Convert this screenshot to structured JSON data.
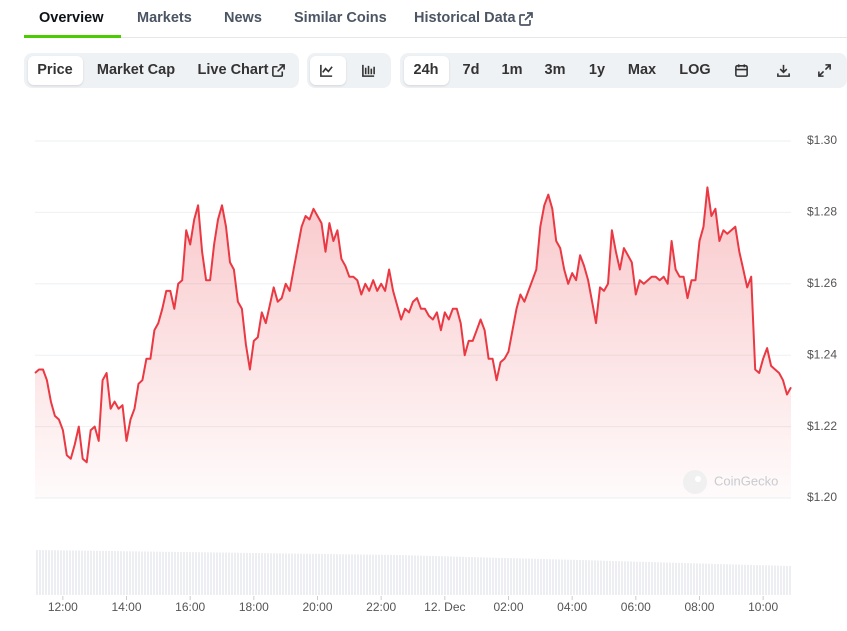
{
  "tabs": [
    "Overview",
    "Markets",
    "News",
    "Similar Coins",
    "Historical Data"
  ],
  "toolbar": {
    "data_types": [
      "Price",
      "Market Cap",
      "Live Chart"
    ],
    "ranges": [
      "24h",
      "7d",
      "1m",
      "3m",
      "1y",
      "Max",
      "LOG"
    ]
  },
  "watermark": "CoinGecko",
  "chart_data": {
    "type": "line",
    "color": "#ea3943",
    "x": [
      11.125,
      11.25,
      11.375,
      11.5,
      11.625,
      11.75,
      11.875,
      12,
      12.125,
      12.25,
      12.375,
      12.5,
      12.625,
      12.75,
      12.875,
      13,
      13.125,
      13.25,
      13.375,
      13.5,
      13.625,
      13.75,
      13.875,
      14,
      14.125,
      14.25,
      14.375,
      14.5,
      14.625,
      14.75,
      14.875,
      15,
      15.125,
      15.25,
      15.375,
      15.5,
      15.625,
      15.75,
      15.875,
      16,
      16.125,
      16.25,
      16.375,
      16.5,
      16.625,
      16.75,
      16.875,
      17,
      17.125,
      17.25,
      17.375,
      17.5,
      17.625,
      17.75,
      17.875,
      18,
      18.125,
      18.25,
      18.375,
      18.5,
      18.625,
      18.75,
      18.875,
      19,
      19.125,
      19.25,
      19.375,
      19.5,
      19.625,
      19.75,
      19.875,
      20,
      20.125,
      20.25,
      20.375,
      20.5,
      20.625,
      20.75,
      20.875,
      21,
      21.125,
      21.25,
      21.375,
      21.5,
      21.625,
      21.75,
      21.875,
      22,
      22.125,
      22.25,
      22.375,
      22.5,
      22.625,
      22.75,
      22.875,
      23,
      23.125,
      23.25,
      23.375,
      23.5,
      23.625,
      23.75,
      23.875,
      24,
      24.125,
      24.25,
      24.375,
      24.5,
      24.625,
      24.75,
      24.875,
      25,
      25.125,
      25.25,
      25.375,
      25.5,
      25.625,
      25.75,
      25.875,
      26,
      26.125,
      26.25,
      26.375,
      26.5,
      26.625,
      26.75,
      26.875,
      27,
      27.125,
      27.25,
      27.375,
      27.5,
      27.625,
      27.75,
      27.875,
      28,
      28.125,
      28.25,
      28.375,
      28.5,
      28.625,
      28.75,
      28.875,
      29,
      29.125,
      29.25,
      29.375,
      29.5,
      29.625,
      29.75,
      29.875,
      30,
      30.125,
      30.25,
      30.375,
      30.5,
      30.625,
      30.75,
      30.875,
      31,
      31.125,
      31.25,
      31.375,
      31.5,
      31.625,
      31.75,
      31.875,
      32,
      32.125,
      32.25,
      32.375,
      32.5,
      32.625,
      32.75,
      32.875,
      33,
      33.125,
      33.25,
      33.375,
      33.5,
      33.625,
      33.75,
      33.875,
      34,
      34.125,
      34.25,
      34.375,
      34.5,
      34.625,
      34.75,
      34.875
    ],
    "values": [
      1.235,
      1.236,
      1.236,
      1.233,
      1.227,
      1.223,
      1.222,
      1.219,
      1.212,
      1.211,
      1.215,
      1.22,
      1.211,
      1.21,
      1.219,
      1.22,
      1.216,
      1.233,
      1.235,
      1.225,
      1.227,
      1.225,
      1.226,
      1.216,
      1.222,
      1.225,
      1.232,
      1.233,
      1.239,
      1.239,
      1.247,
      1.249,
      1.253,
      1.258,
      1.258,
      1.253,
      1.26,
      1.261,
      1.275,
      1.271,
      1.278,
      1.282,
      1.269,
      1.261,
      1.261,
      1.271,
      1.278,
      1.282,
      1.276,
      1.266,
      1.264,
      1.255,
      1.253,
      1.243,
      1.236,
      1.244,
      1.245,
      1.252,
      1.249,
      1.254,
      1.259,
      1.255,
      1.256,
      1.26,
      1.258,
      1.264,
      1.27,
      1.276,
      1.279,
      1.278,
      1.281,
      1.279,
      1.277,
      1.269,
      1.277,
      1.272,
      1.275,
      1.267,
      1.265,
      1.262,
      1.262,
      1.261,
      1.257,
      1.26,
      1.258,
      1.261,
      1.258,
      1.26,
      1.258,
      1.264,
      1.258,
      1.254,
      1.25,
      1.253,
      1.252,
      1.255,
      1.256,
      1.253,
      1.253,
      1.251,
      1.25,
      1.252,
      1.247,
      1.252,
      1.25,
      1.253,
      1.253,
      1.249,
      1.24,
      1.244,
      1.244,
      1.247,
      1.25,
      1.247,
      1.239,
      1.239,
      1.233,
      1.238,
      1.239,
      1.241,
      1.247,
      1.253,
      1.257,
      1.255,
      1.258,
      1.261,
      1.264,
      1.276,
      1.282,
      1.285,
      1.281,
      1.272,
      1.27,
      1.264,
      1.26,
      1.263,
      1.261,
      1.268,
      1.265,
      1.261,
      1.255,
      1.249,
      1.259,
      1.258,
      1.26,
      1.275,
      1.269,
      1.264,
      1.27,
      1.268,
      1.266,
      1.257,
      1.261,
      1.26,
      1.261,
      1.262,
      1.262,
      1.261,
      1.262,
      1.26,
      1.272,
      1.264,
      1.262,
      1.262,
      1.256,
      1.261,
      1.261,
      1.272,
      1.276,
      1.287,
      1.279,
      1.281,
      1.272,
      1.275,
      1.274,
      1.275,
      1.276,
      1.269,
      1.264,
      1.259,
      1.262,
      1.236,
      1.235,
      1.239,
      1.242,
      1.237,
      1.236,
      1.235,
      1.233,
      1.229,
      1.231
    ],
    "xlim": [
      11.125,
      34.875
    ],
    "xticks": [
      {
        "value": 12,
        "label": "12:00"
      },
      {
        "value": 14,
        "label": "14:00"
      },
      {
        "value": 16,
        "label": "16:00"
      },
      {
        "value": 18,
        "label": "18:00"
      },
      {
        "value": 20,
        "label": "20:00"
      },
      {
        "value": 22,
        "label": "22:00"
      },
      {
        "value": 24,
        "label": "12. Dec"
      },
      {
        "value": 26,
        "label": "02:00"
      },
      {
        "value": 28,
        "label": "04:00"
      },
      {
        "value": 30,
        "label": "06:00"
      },
      {
        "value": 32,
        "label": "08:00"
      },
      {
        "value": 34,
        "label": "10:00"
      }
    ],
    "ylim": [
      1.2,
      1.3
    ],
    "yticks": [
      {
        "value": 1.2,
        "label": "$1.20"
      },
      {
        "value": 1.22,
        "label": "$1.22"
      },
      {
        "value": 1.24,
        "label": "$1.24"
      },
      {
        "value": 1.26,
        "label": "$1.26"
      },
      {
        "value": 1.28,
        "label": "$1.28"
      },
      {
        "value": 1.3,
        "label": "$1.30"
      }
    ],
    "grid": true
  }
}
